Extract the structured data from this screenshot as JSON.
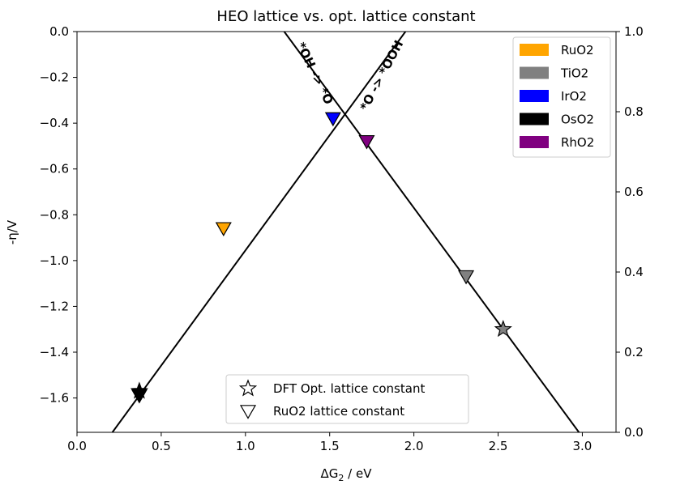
{
  "chart_data": {
    "type": "scatter",
    "title": "HEO lattice vs. opt. lattice constant",
    "xlabel": "ΔG",
    "xlabel_sub": "2",
    "xlabel_suffix": " / eV",
    "ylabel": "-η/V",
    "xlim": [
      0.0,
      3.2
    ],
    "ylim": [
      -1.75,
      0.0
    ],
    "y2lim": [
      0.0,
      1.0
    ],
    "x_ticks": [
      "0.0",
      "0.5",
      "1.0",
      "1.5",
      "2.0",
      "2.5",
      "3.0"
    ],
    "x_tick_values": [
      0.0,
      0.5,
      1.0,
      1.5,
      2.0,
      2.5,
      3.0
    ],
    "y_ticks": [
      "0.0",
      "−0.2",
      "−0.4",
      "−0.6",
      "−0.8",
      "−1.0",
      "−1.2",
      "−1.4",
      "−1.6"
    ],
    "y_tick_values": [
      0.0,
      -0.2,
      -0.4,
      -0.6,
      -0.8,
      -1.0,
      -1.2,
      -1.4,
      -1.6
    ],
    "y2_ticks": [
      "0.0",
      "0.2",
      "0.4",
      "0.6",
      "0.8",
      "1.0"
    ],
    "y2_tick_values": [
      0.0,
      0.2,
      0.4,
      0.6,
      0.8,
      1.0
    ],
    "lines": [
      {
        "label": "*O -> *OOH",
        "x": [
          0.21,
          1.95
        ],
        "y": [
          -1.75,
          0.0
        ]
      },
      {
        "label": "*OH -> *O",
        "x": [
          1.23,
          2.98
        ],
        "y": [
          0.0,
          -1.75
        ]
      }
    ],
    "annotations": [
      {
        "text": "*OH -> *O",
        "x": 1.39,
        "y": -0.19,
        "rotation": 64
      },
      {
        "text": "*O -> *OOH",
        "x": 1.83,
        "y": -0.2,
        "rotation": -62
      }
    ],
    "materials": [
      {
        "name": "RuO2",
        "color": "#FFA500"
      },
      {
        "name": "TiO2",
        "color": "#808080"
      },
      {
        "name": "IrO2",
        "color": "#0000FF"
      },
      {
        "name": "OsO2",
        "color": "#000000"
      },
      {
        "name": "RhO2",
        "color": "#800080"
      }
    ],
    "series": [
      {
        "name": "DFT Opt. lattice constant",
        "marker": "star",
        "points": [
          {
            "material": "TiO2",
            "x": 2.53,
            "y": -1.3
          },
          {
            "material": "OsO2",
            "x": 0.37,
            "y": -1.57
          }
        ]
      },
      {
        "name": "RuO2 lattice constant",
        "marker": "triangle-down",
        "points": [
          {
            "material": "RuO2",
            "x": 0.87,
            "y": -0.86
          },
          {
            "material": "TiO2",
            "x": 2.31,
            "y": -1.07
          },
          {
            "material": "IrO2",
            "x": 1.52,
            "y": -0.38
          },
          {
            "material": "OsO2",
            "x": 0.37,
            "y": -1.59
          },
          {
            "material": "RhO2",
            "x": 1.72,
            "y": -0.48
          }
        ]
      }
    ],
    "grid": false,
    "color_legend_position": "top-right",
    "marker_legend_position": "lower-center"
  }
}
